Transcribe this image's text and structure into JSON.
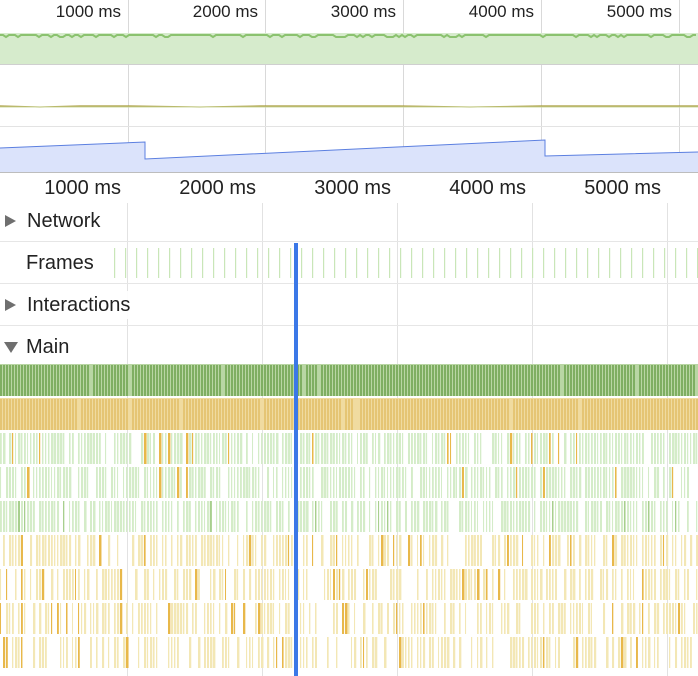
{
  "overview": {
    "ruler_labels": [
      "1000 ms",
      "2000 ms",
      "3000 ms",
      "4000 ms",
      "5000 ms"
    ]
  },
  "timeline": {
    "ruler_labels": [
      "1000 ms",
      "2000 ms",
      "3000 ms",
      "4000 ms",
      "5000 ms"
    ],
    "tracks": {
      "network": {
        "label": "Network",
        "expanded": false
      },
      "frames": {
        "label": "Frames"
      },
      "interactions": {
        "label": "Interactions",
        "expanded": false
      },
      "main": {
        "label": "Main",
        "expanded": true
      }
    }
  },
  "colors": {
    "fps_band": "#d6ebcc",
    "fps_line": "#8bc26f",
    "cpu_line": "#a89a3a",
    "heap_fill": "#dbe3fb",
    "heap_line": "#5b7fe0",
    "frame_tick": "#c9e6b8",
    "playhead": "#3b78e7",
    "scripting_dark": "#7fae62",
    "scripting_yellow": "#e5c574",
    "light_green": "#d4ecc8",
    "light_yellow": "#f3e7b5",
    "orange": "#e8b84a"
  },
  "icons": {
    "collapsed": "triangle-right-icon",
    "expanded": "triangle-down-icon"
  }
}
